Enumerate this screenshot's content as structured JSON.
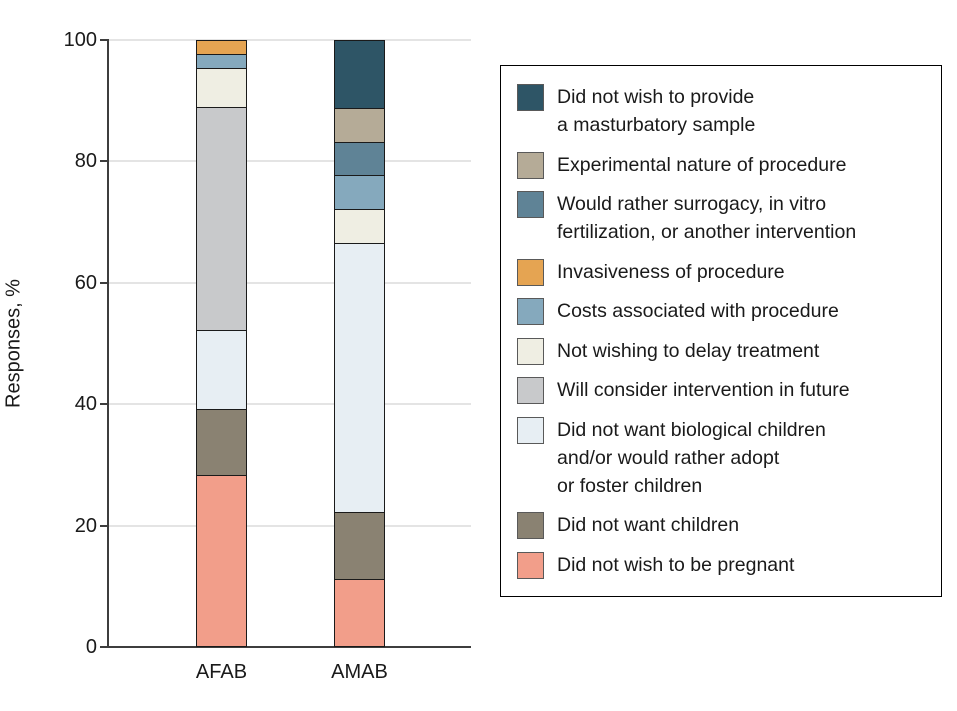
{
  "chart_data": {
    "type": "bar",
    "stacked": true,
    "title": "",
    "xlabel": "",
    "ylabel": "Responses, %",
    "ylim": [
      0,
      100
    ],
    "yticks": [
      0,
      20,
      40,
      60,
      80,
      100
    ],
    "grid": "horizontal",
    "legend_position": "right",
    "categories": [
      "AFAB",
      "AMAB"
    ],
    "series": [
      {
        "name": "Did not wish to provide\na masturbatory sample",
        "color": "#2e5566",
        "values": [
          0,
          12.5
        ]
      },
      {
        "name": "Experimental nature of procedure",
        "color": "#b5ab97",
        "values": [
          0,
          6.25
        ]
      },
      {
        "name": "Would rather surrogacy, in vitro\nfertilization, or another intervention",
        "color": "#5f8396",
        "values": [
          0,
          6.25
        ]
      },
      {
        "name": "Invasiveness of procedure",
        "color": "#e5a452",
        "values": [
          2.2,
          0
        ]
      },
      {
        "name": "Costs associated with procedure",
        "color": "#85a9bd",
        "values": [
          2.2,
          6.25
        ]
      },
      {
        "name": "Not wishing to delay treatment",
        "color": "#efeee3",
        "values": [
          6.5,
          6.25
        ]
      },
      {
        "name": "Will consider intervention in future",
        "color": "#c8c9cb",
        "values": [
          37.0,
          0
        ]
      },
      {
        "name": "Did not want biological children\nand/or would rather adopt\nor foster children",
        "color": "#e7eef3",
        "values": [
          13.0,
          50.0
        ]
      },
      {
        "name": "Did not want children",
        "color": "#8a8272",
        "values": [
          10.9,
          12.5
        ]
      },
      {
        "name": "Did not wish to be pregnant",
        "color": "#f29e8a",
        "values": [
          28.3,
          12.5
        ]
      }
    ]
  }
}
